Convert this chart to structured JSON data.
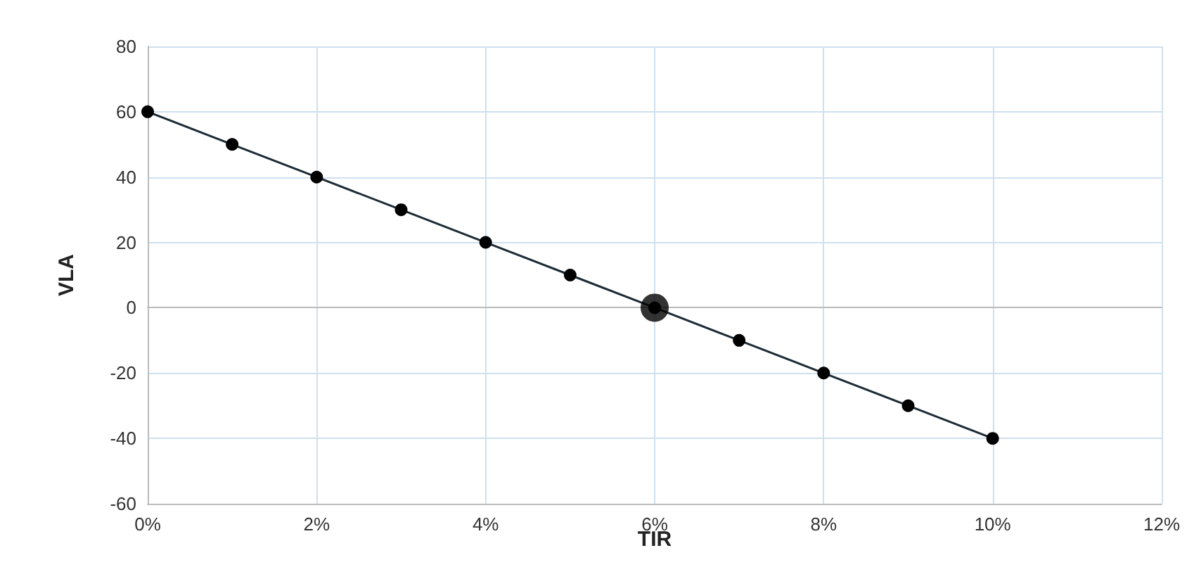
{
  "chart_data": {
    "type": "line",
    "xlabel": "TIR",
    "ylabel": "VLA",
    "x": [
      0,
      1,
      2,
      3,
      4,
      5,
      6,
      7,
      8,
      9,
      10
    ],
    "series": [
      {
        "color": "#1c2b36",
        "values": [
          60,
          50,
          40,
          30,
          20,
          10,
          0,
          -10,
          -20,
          -30,
          -40
        ]
      },
      {
        "type": "scatter",
        "color": "#000000",
        "x": [
          6
        ],
        "values": [
          0
        ]
      }
    ],
    "xlim": [
      0,
      12
    ],
    "xticks": [
      {
        "value": 0,
        "label": "0%"
      },
      {
        "value": 2,
        "label": "2%"
      },
      {
        "value": 4,
        "label": "4%"
      },
      {
        "value": 6,
        "label": "6%"
      },
      {
        "value": 8,
        "label": "8%"
      },
      {
        "value": 10,
        "label": "10%"
      },
      {
        "value": 12,
        "label": "12%"
      }
    ],
    "ylim": [
      -60,
      80
    ],
    "yticks": [
      -60,
      -40,
      -20,
      0,
      20,
      40,
      60,
      80
    ],
    "grid": true,
    "marker": "circle",
    "line_style": "solid"
  }
}
